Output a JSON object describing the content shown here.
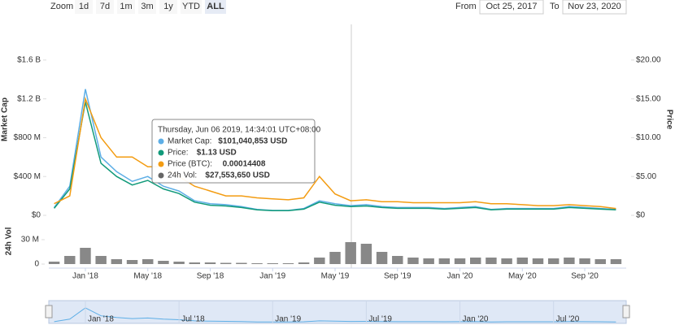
{
  "controls": {
    "zoom_label": "Zoom",
    "buttons": [
      "1d",
      "7d",
      "1m",
      "3m",
      "1y",
      "YTD",
      "ALL"
    ],
    "active": "ALL",
    "from_label": "From",
    "from": "Oct 25, 2017",
    "to_label": "To",
    "to": "Nov 23, 2020"
  },
  "chart_data": [
    {
      "type": "line",
      "x": [
        "2017-11",
        "2017-12",
        "2018-01",
        "2018-02",
        "2018-03",
        "2018-04",
        "2018-05",
        "2018-06",
        "2018-07",
        "2018-08",
        "2018-09",
        "2018-10",
        "2018-11",
        "2018-12",
        "2019-01",
        "2019-02",
        "2019-03",
        "2019-04",
        "2019-05",
        "2019-06",
        "2019-07",
        "2019-08",
        "2019-09",
        "2019-10",
        "2019-11",
        "2019-12",
        "2020-01",
        "2020-02",
        "2020-03",
        "2020-04",
        "2020-05",
        "2020-06",
        "2020-07",
        "2020-08",
        "2020-09",
        "2020-10",
        "2020-11"
      ],
      "xticks": [
        {
          "value": "2018-01",
          "label": "Jan '18"
        },
        {
          "value": "2018-05",
          "label": "May '18"
        },
        {
          "value": "2018-09",
          "label": "Sep '18"
        },
        {
          "value": "2019-01",
          "label": "Jan '19"
        },
        {
          "value": "2019-05",
          "label": "May '19"
        },
        {
          "value": "2019-09",
          "label": "Sep '19"
        },
        {
          "value": "2020-01",
          "label": "Jan '20"
        },
        {
          "value": "2020-05",
          "label": "May '20"
        },
        {
          "value": "2020-09",
          "label": "Sep '20"
        }
      ],
      "y_label": "Market Cap",
      "y2_label": "Price",
      "ylim": [
        0,
        1800000000
      ],
      "yticks": [
        {
          "value": 0,
          "label": "$0"
        },
        {
          "value": 400000000,
          "label": "$400 M"
        },
        {
          "value": 800000000,
          "label": "$800 M"
        },
        {
          "value": 1200000000,
          "label": "$1.2 B"
        },
        {
          "value": 1600000000,
          "label": "$1.6 B"
        }
      ],
      "y2lim": [
        0,
        22.5
      ],
      "y2ticks": [
        {
          "value": 0,
          "label": "$0"
        },
        {
          "value": 5,
          "label": "$5.00"
        },
        {
          "value": 10,
          "label": "$10.00"
        },
        {
          "value": 15,
          "label": "$15.00"
        },
        {
          "value": 20,
          "label": "$20.00"
        }
      ],
      "y3lim": [
        0,
        0.0018
      ],
      "grid": false,
      "series": [
        {
          "name": "Market Cap",
          "color": "#5daee6",
          "axis": "y",
          "values": [
            80000000,
            300000000,
            1300000000,
            600000000,
            450000000,
            350000000,
            400000000,
            300000000,
            250000000,
            150000000,
            120000000,
            110000000,
            90000000,
            60000000,
            50000000,
            50000000,
            70000000,
            150000000,
            120000000,
            100000000,
            110000000,
            90000000,
            80000000,
            80000000,
            80000000,
            70000000,
            80000000,
            90000000,
            60000000,
            70000000,
            70000000,
            70000000,
            70000000,
            90000000,
            80000000,
            70000000,
            60000000
          ]
        },
        {
          "name": "Price",
          "color": "#119a7a",
          "axis": "y2",
          "values": [
            0.9,
            3.4,
            14.6,
            6.7,
            5.0,
            3.9,
            4.5,
            3.4,
            2.8,
            1.7,
            1.3,
            1.2,
            1.0,
            0.7,
            0.6,
            0.6,
            0.8,
            1.7,
            1.3,
            1.13,
            1.2,
            1.0,
            0.9,
            0.9,
            0.9,
            0.8,
            0.9,
            1.0,
            0.7,
            0.8,
            0.8,
            0.8,
            0.8,
            1.0,
            0.9,
            0.8,
            0.7
          ]
        },
        {
          "name": "Price (BTC)",
          "color": "#f39c12",
          "axis": "y3",
          "values": [
            0.00012,
            0.0002,
            0.0012,
            0.0008,
            0.0006,
            0.0006,
            0.0005,
            0.0005,
            0.0004,
            0.0003,
            0.00025,
            0.0002,
            0.0002,
            0.00018,
            0.00017,
            0.00016,
            0.00018,
            0.0004,
            0.00022,
            0.00015,
            0.00016,
            0.00014,
            0.00014,
            0.00013,
            0.00013,
            0.00013,
            0.00013,
            0.00014,
            0.00012,
            0.00012,
            0.00011,
            0.0001,
            0.0001,
            0.00011,
            0.0001,
            9e-05,
            7e-05
          ]
        }
      ],
      "tooltip": {
        "title": "Thursday, Jun 06 2019, 14:34:01 UTC+08:00",
        "rows": [
          {
            "label": "Market Cap:",
            "value": "$101,040,853 USD",
            "color": "#5daee6"
          },
          {
            "label": "Price:",
            "value": "$1.13 USD",
            "color": "#119a7a"
          },
          {
            "label": "Price (BTC):",
            "value": "0.00014408",
            "color": "#f39c12"
          },
          {
            "label": "24h Vol:",
            "value": "$27,553,650 USD",
            "color": "#666666"
          }
        ]
      },
      "navigator": {
        "xticks": [
          {
            "value": "2018-01",
            "label": "Jan '18"
          },
          {
            "value": "2018-07",
            "label": "Jul '18"
          },
          {
            "value": "2019-01",
            "label": "Jan '19"
          },
          {
            "value": "2019-07",
            "label": "Jul '19"
          },
          {
            "value": "2020-01",
            "label": "Jan '20"
          },
          {
            "value": "2020-07",
            "label": "Jul '20"
          }
        ]
      }
    },
    {
      "type": "bar",
      "y_label": "24h Vol",
      "color": "#888888",
      "ylim": [
        0,
        42000000
      ],
      "yticks": [
        0,
        {
          "value": 30000000,
          "label": "30 M"
        }
      ],
      "values": [
        3000000,
        10000000,
        20000000,
        10000000,
        6000000,
        5000000,
        6000000,
        4000000,
        3000000,
        2000000,
        2000000,
        1500000,
        1500000,
        1000000,
        1000000,
        1000000,
        2000000,
        8000000,
        15000000,
        27000000,
        25000000,
        15000000,
        10000000,
        8000000,
        7000000,
        7000000,
        7000000,
        8000000,
        8000000,
        7000000,
        8000000,
        7000000,
        7000000,
        8000000,
        7000000,
        6000000,
        6000000
      ]
    }
  ]
}
